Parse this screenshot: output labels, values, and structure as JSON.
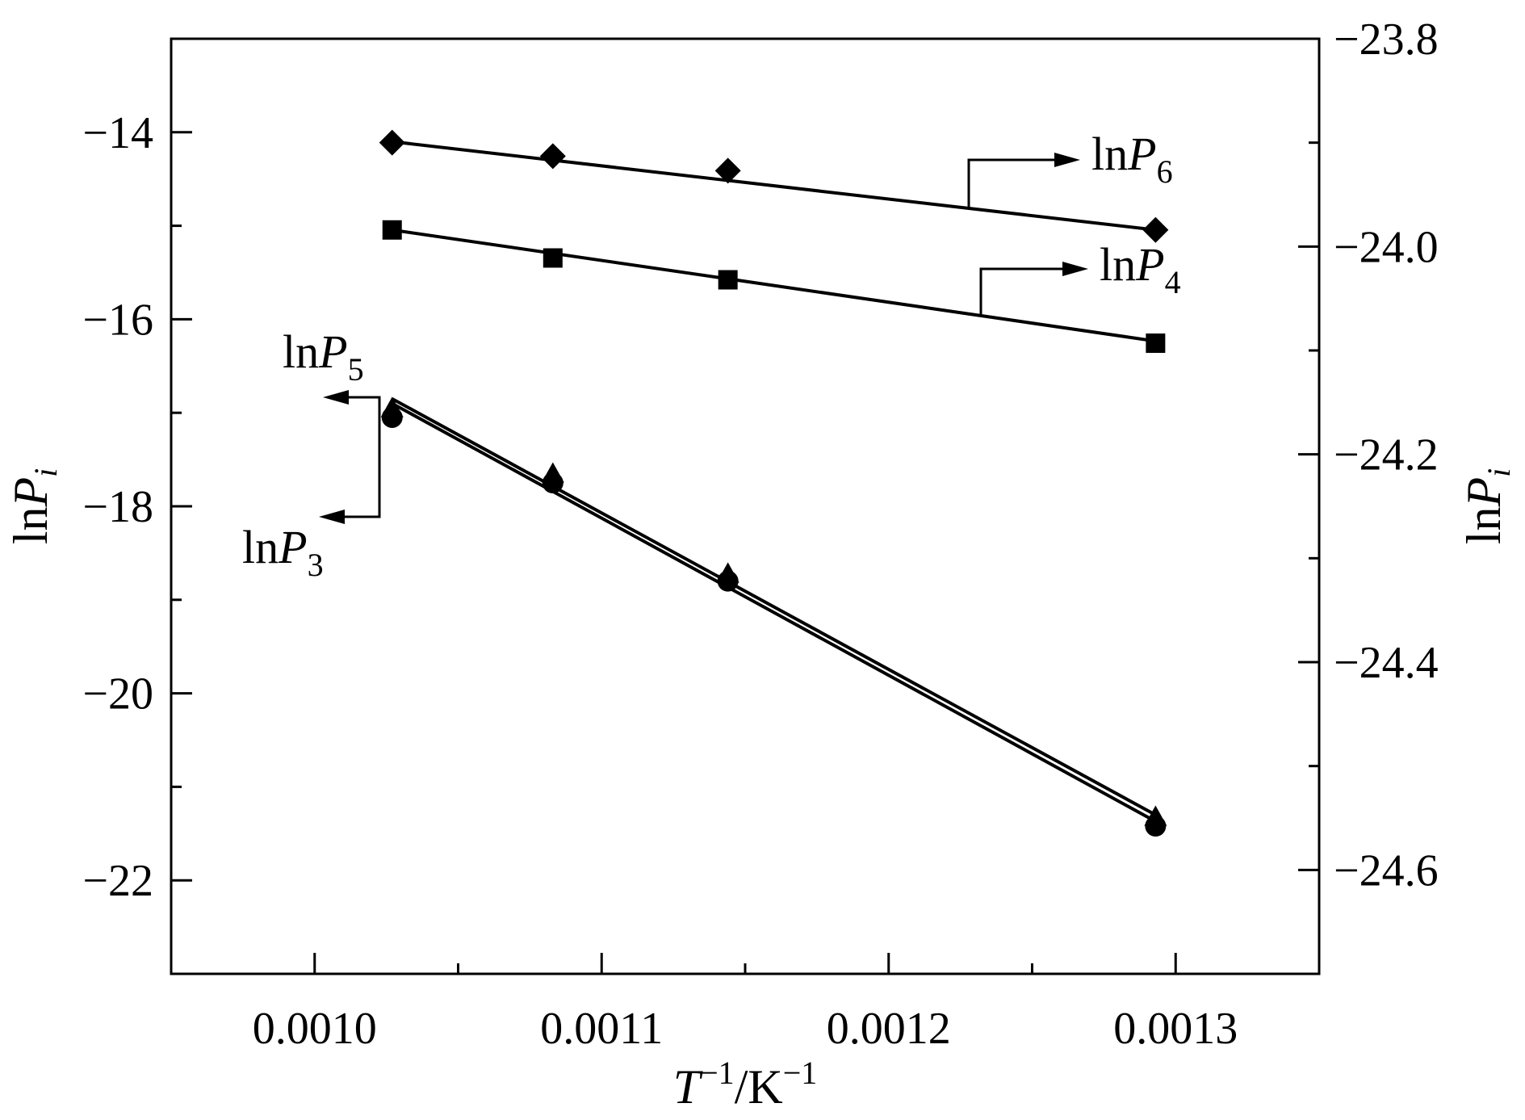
{
  "chart_data": {
    "type": "scatter",
    "x_axis": {
      "label_prefix": "T",
      "label_sup": "−1",
      "label_mid": "/K",
      "label_sup2": "−1",
      "range": [
        0.00095,
        0.00135
      ],
      "ticks": [
        0.001,
        0.0011,
        0.0012,
        0.0013
      ],
      "tick_labels": [
        "0.0010",
        "0.0011",
        "0.0012",
        "0.0013"
      ],
      "minor_ticks": [
        0.00105,
        0.00115,
        0.00125
      ]
    },
    "y_left": {
      "label_ln": "ln",
      "label_P": "P",
      "label_sub": "i",
      "range": [
        -23,
        -13
      ],
      "ticks": [
        -22,
        -20,
        -18,
        -16,
        -14
      ],
      "tick_labels": [
        "−22",
        "−20",
        "−18",
        "−16",
        "−14"
      ],
      "minor_ticks": [
        -23,
        -21,
        -19,
        -17,
        -15,
        -13
      ]
    },
    "y_right": {
      "label_ln": "ln",
      "label_P": "P",
      "label_sub": "i",
      "range": [
        -24.7,
        -23.8
      ],
      "ticks": [
        -24.6,
        -24.4,
        -24.2,
        -24.0,
        -23.8
      ],
      "tick_labels": [
        "−24.6",
        "−24.4",
        "−24.2",
        "−24.0",
        "−23.8"
      ],
      "minor_ticks": [
        -24.5,
        -24.3,
        -24.1,
        -23.9
      ]
    },
    "series": [
      {
        "name_ln": "ln",
        "name_P": "P",
        "name_sub": "6",
        "axis": "right",
        "marker": "diamond",
        "x": [
          0.001027,
          0.001083,
          0.001144,
          0.001293
        ],
        "y": [
          -23.9,
          -23.913,
          -23.927,
          -23.984
        ],
        "fit": {
          "x": [
            0.001027,
            0.001293
          ],
          "y": [
            -23.899,
            -23.984
          ]
        }
      },
      {
        "name_ln": "ln",
        "name_P": "P",
        "name_sub": "4",
        "axis": "right",
        "marker": "square",
        "x": [
          0.001027,
          0.001083,
          0.001144,
          0.001293
        ],
        "y": [
          -23.984,
          -24.011,
          -24.032,
          -24.093
        ],
        "fit": {
          "x": [
            0.001027,
            0.001293
          ],
          "y": [
            -23.984,
            -24.091
          ]
        }
      },
      {
        "name_ln": "ln",
        "name_P": "P",
        "name_sub": "5",
        "axis": "left",
        "marker": "triangle",
        "x": [
          0.001027,
          0.001083,
          0.001144,
          0.001293
        ],
        "y": [
          -16.95,
          -17.65,
          -18.72,
          -21.32
        ],
        "fit": {
          "x": [
            0.001027,
            0.001293
          ],
          "y": [
            -16.85,
            -21.3
          ]
        }
      },
      {
        "name_ln": "ln",
        "name_P": "P",
        "name_sub": "3",
        "axis": "left",
        "marker": "circle",
        "x": [
          0.001027,
          0.001083,
          0.001144,
          0.001293
        ],
        "y": [
          -17.05,
          -17.75,
          -18.8,
          -21.42
        ],
        "fit": {
          "x": [
            0.001027,
            0.001293
          ],
          "y": [
            -16.9,
            -21.37
          ]
        }
      }
    ],
    "grid": false,
    "legend": "none; inline labels with arrows pointing to the axis used"
  }
}
